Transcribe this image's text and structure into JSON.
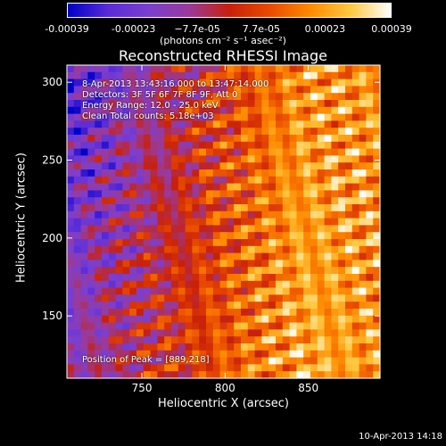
{
  "colorbar": {
    "tick_labels": [
      "-0.00039",
      "-0.00023",
      "−7.7e-05",
      "7.7e-05",
      "0.00023",
      "0.00039"
    ],
    "tick_values": [
      -0.00039,
      -0.00023,
      -7.7e-05,
      7.7e-05,
      0.00023,
      0.00039
    ],
    "units": "(photons cm⁻² s⁻¹ asec⁻²)",
    "colors": [
      "#0000c8",
      "#5a2bd8",
      "#7a3fd0",
      "#9a3a9a",
      "#c8200a",
      "#e84a00",
      "#ff8a00",
      "#ffc840",
      "#ffffff"
    ]
  },
  "title": "Reconstructed RHESSI Image",
  "annotations": {
    "time": "8-Apr-2013 13:43:16.000 to 13:47:14.000",
    "detectors": "Detectors: 3F 5F 6F 7F 8F 9F, Att 0",
    "energy": "Energy Range: 12.0 - 25.0 keV",
    "clean": "Clean    Total counts: 5.18e+03",
    "peak": "Position of Peak = [889,218]"
  },
  "footer": "10-Apr-2013 14:18",
  "chart_data": {
    "type": "heatmap",
    "title": "Reconstructed RHESSI Image",
    "xlabel": "Heliocentric X (arcsec)",
    "ylabel": "Heliocentric Y (arcsec)",
    "xlim": [
      705,
      893
    ],
    "ylim": [
      110,
      311
    ],
    "xticks": [
      750,
      800,
      850
    ],
    "yticks": [
      150,
      200,
      250,
      300
    ],
    "peak_position": [
      889,
      218
    ],
    "colorbar_range": [
      -0.00039,
      0.00039
    ]
  }
}
